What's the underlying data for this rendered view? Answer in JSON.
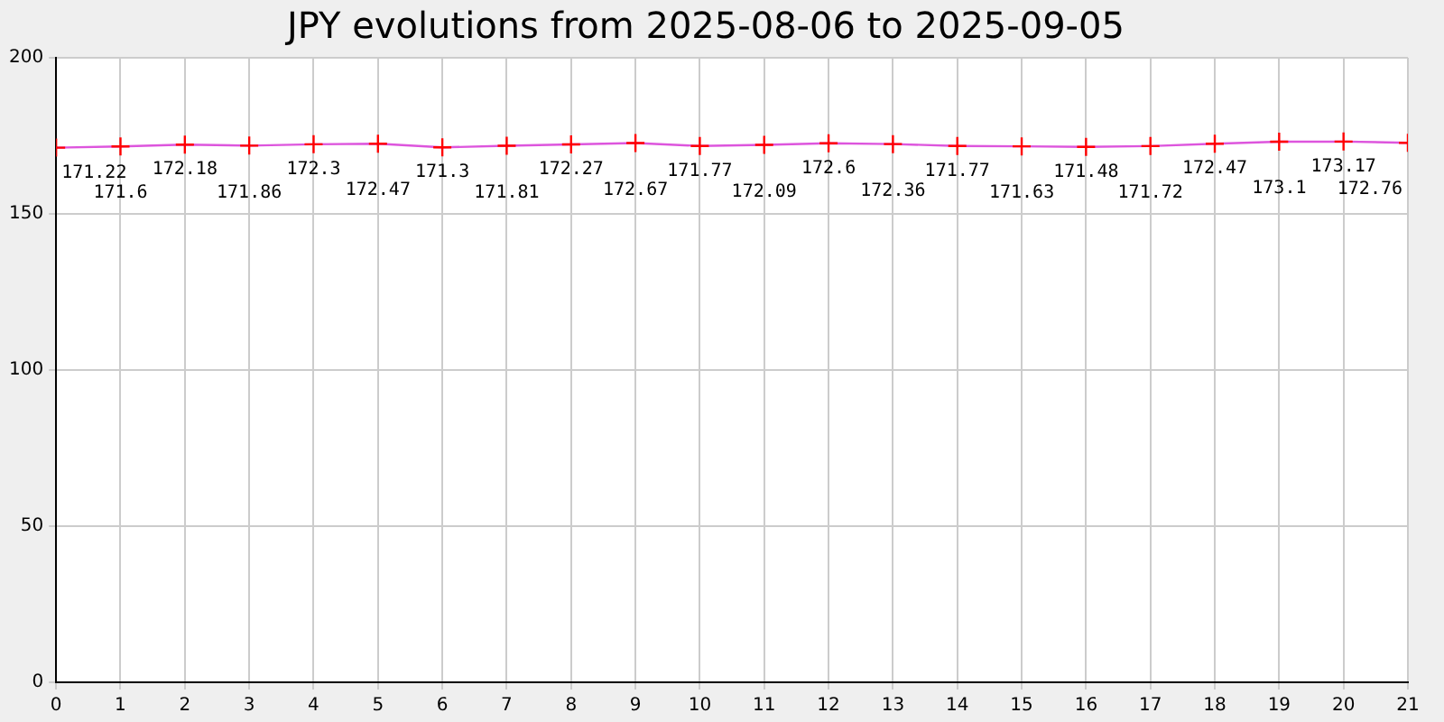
{
  "chart_data": {
    "type": "line",
    "title": "JPY evolutions from 2025-08-06 to 2025-09-05",
    "x": [
      0,
      1,
      2,
      3,
      4,
      5,
      6,
      7,
      8,
      9,
      10,
      11,
      12,
      13,
      14,
      15,
      16,
      17,
      18,
      19,
      20,
      21
    ],
    "series": [
      {
        "color": "#dd55dd",
        "colors": [
          "#ff0000",
          "#ff0000",
          "#ff0000",
          "#ff0000",
          "#ff0000",
          "#ff0000",
          "#ff0000",
          "#ff0000",
          "#ff0000",
          "#ff0000",
          "#ff0000",
          "#ff0000",
          "#ff0000",
          "#ff0000",
          "#ff0000",
          "#ff0000",
          "#ff0000",
          "#ff0000",
          "#ff0000",
          "#ff0000",
          "#ff0000",
          "#ff0000"
        ],
        "values": [
          171.22,
          171.6,
          172.18,
          171.86,
          172.3,
          172.47,
          171.3,
          171.81,
          172.27,
          172.67,
          171.77,
          172.09,
          172.6,
          172.36,
          171.77,
          171.63,
          171.48,
          171.72,
          172.47,
          173.1,
          173.17,
          172.76
        ]
      }
    ],
    "xlim": [
      0,
      21
    ],
    "xticks": [
      0,
      1,
      2,
      3,
      4,
      5,
      6,
      7,
      8,
      9,
      10,
      11,
      12,
      13,
      14,
      15,
      16,
      17,
      18,
      19,
      20,
      21
    ],
    "ylim": [
      0,
      200
    ],
    "yticks": [
      0,
      50,
      100,
      150,
      200
    ],
    "grid": true,
    "marker": "cross",
    "line_style": "solid",
    "data_labels": true,
    "legend": false
  }
}
